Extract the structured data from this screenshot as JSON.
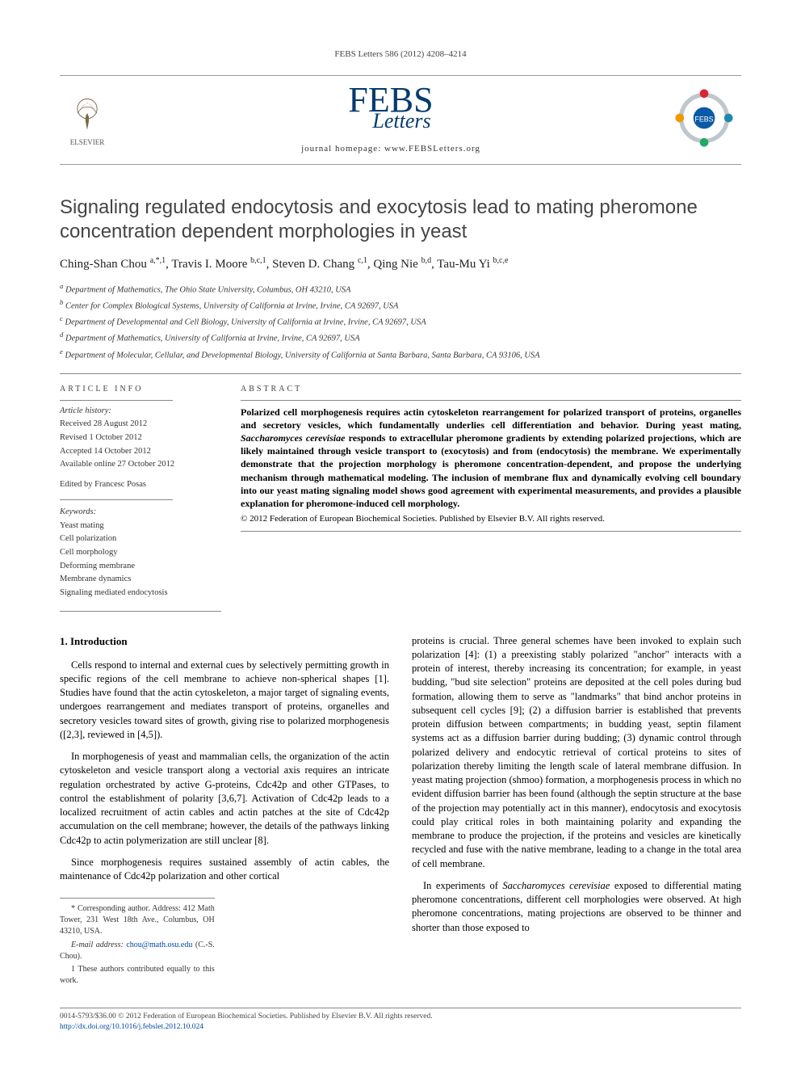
{
  "running_head": "FEBS Letters 586 (2012) 4208–4214",
  "header": {
    "elsevier_label": "ELSEVIER",
    "journal_logo_main": "FEBS",
    "journal_logo_sub": "Letters",
    "journal_home_label": "journal homepage: ",
    "journal_home_url": "www.FEBSLetters.org",
    "logo_color": "#053a6e",
    "febs_badge_color": "#0a5aa6"
  },
  "title": "Signaling regulated endocytosis and exocytosis lead to mating pheromone concentration dependent morphologies in yeast",
  "authors_html": "Ching-Shan Chou <sup>a,*,1</sup>, Travis I. Moore <sup>b,c,1</sup>, Steven D. Chang <sup>c,1</sup>, Qing Nie <sup>b,d</sup>, Tau-Mu Yi <sup>b,c,e</sup>",
  "affiliations": [
    "a Department of Mathematics, The Ohio State University, Columbus, OH 43210, USA",
    "b Center for Complex Biological Systems, University of California at Irvine, Irvine, CA 92697, USA",
    "c Department of Developmental and Cell Biology, University of California at Irvine, Irvine, CA 92697, USA",
    "d Department of Mathematics, University of California at Irvine, Irvine, CA 92697, USA",
    "e Department of Molecular, Cellular, and Developmental Biology, University of California at Santa Barbara, Santa Barbara, CA 93106, USA"
  ],
  "article_info_heading": "ARTICLE INFO",
  "abstract_heading": "ABSTRACT",
  "history": {
    "head": "Article history:",
    "received": "Received 28 August 2012",
    "revised": "Revised 1 October 2012",
    "accepted": "Accepted 14 October 2012",
    "online": "Available online 27 October 2012"
  },
  "edited_by": "Edited by Francesc Posas",
  "keywords_head": "Keywords:",
  "keywords": [
    "Yeast mating",
    "Cell polarization",
    "Cell morphology",
    "Deforming membrane",
    "Membrane dynamics",
    "Signaling mediated endocytosis"
  ],
  "abstract": "Polarized cell morphogenesis requires actin cytoskeleton rearrangement for polarized transport of proteins, organelles and secretory vesicles, which fundamentally underlies cell differentiation and behavior. During yeast mating, Saccharomyces cerevisiae responds to extracellular pheromone gradients by extending polarized projections, which are likely maintained through vesicle transport to (exocytosis) and from (endocytosis) the membrane. We experimentally demonstrate that the projection morphology is pheromone concentration-dependent, and propose the underlying mechanism through mathematical modeling. The inclusion of membrane flux and dynamically evolving cell boundary into our yeast mating signaling model shows good agreement with experimental measurements, and provides a plausible explanation for pheromone-induced cell morphology.",
  "copyright_line": "© 2012 Federation of European Biochemical Societies. Published by Elsevier B.V. All rights reserved.",
  "section1_heading": "1. Introduction",
  "intro_p1": "Cells respond to internal and external cues by selectively permitting growth in specific regions of the cell membrane to achieve non-spherical shapes [1]. Studies have found that the actin cytoskeleton, a major target of signaling events, undergoes rearrangement and mediates transport of proteins, organelles and secretory vesicles toward sites of growth, giving rise to polarized morphogenesis ([2,3], reviewed in [4,5]).",
  "intro_p2": "In morphogenesis of yeast and mammalian cells, the organization of the actin cytoskeleton and vesicle transport along a vectorial axis requires an intricate regulation orchestrated by active G-proteins, Cdc42p and other GTPases, to control the establishment of polarity [3,6,7]. Activation of Cdc42p leads to a localized recruitment of actin cables and actin patches at the site of Cdc42p accumulation on the cell membrane; however, the details of the pathways linking Cdc42p to actin polymerization are still unclear [8].",
  "intro_p3": "Since morphogenesis requires sustained assembly of actin cables, the maintenance of Cdc42p polarization and other cortical",
  "intro_p3b": "proteins is crucial. Three general schemes have been invoked to explain such polarization [4]: (1) a preexisting stably polarized \"anchor\" interacts with a protein of interest, thereby increasing its concentration; for example, in yeast budding, \"bud site selection\" proteins are deposited at the cell poles during bud formation, allowing them to serve as \"landmarks\" that bind anchor proteins in subsequent cell cycles [9]; (2) a diffusion barrier is established that prevents protein diffusion between compartments; in budding yeast, septin filament systems act as a diffusion barrier during budding; (3) dynamic control through polarized delivery and endocytic retrieval of cortical proteins to sites of polarization thereby limiting the length scale of lateral membrane diffusion. In yeast mating projection (shmoo) formation, a morphogenesis process in which no evident diffusion barrier has been found (although the septin structure at the base of the projection may potentially act in this manner), endocytosis and exocytosis could play critical roles in both maintaining polarity and expanding the membrane to produce the projection, if the proteins and vesicles are kinetically recycled and fuse with the native membrane, leading to a change in the total area of cell membrane.",
  "intro_p4": "In experiments of Saccharomyces cerevisiae exposed to differential mating pheromone concentrations, different cell morphologies were observed. At high pheromone concentrations, mating projections are observed to be thinner and shorter than those exposed to",
  "footnotes": {
    "corr": "* Corresponding author. Address: 412 Math Tower, 231 West 18th Ave., Columbus, OH 43210, USA.",
    "email_label": "E-mail address:",
    "email": "chou@math.osu.edu",
    "email_name": "(C.-S. Chou).",
    "equal": "1 These authors contributed equally to this work."
  },
  "footer": {
    "issn_line": "0014-5793/$36.00 © 2012 Federation of European Biochemical Societies. Published by Elsevier B.V. All rights reserved.",
    "doi_label": "http://dx.doi.org/",
    "doi": "10.1016/j.febslet.2012.10.024"
  },
  "colors": {
    "text": "#000000",
    "heading_grey": "#444444",
    "link_blue": "#0047a6",
    "rule_grey": "#888888"
  }
}
